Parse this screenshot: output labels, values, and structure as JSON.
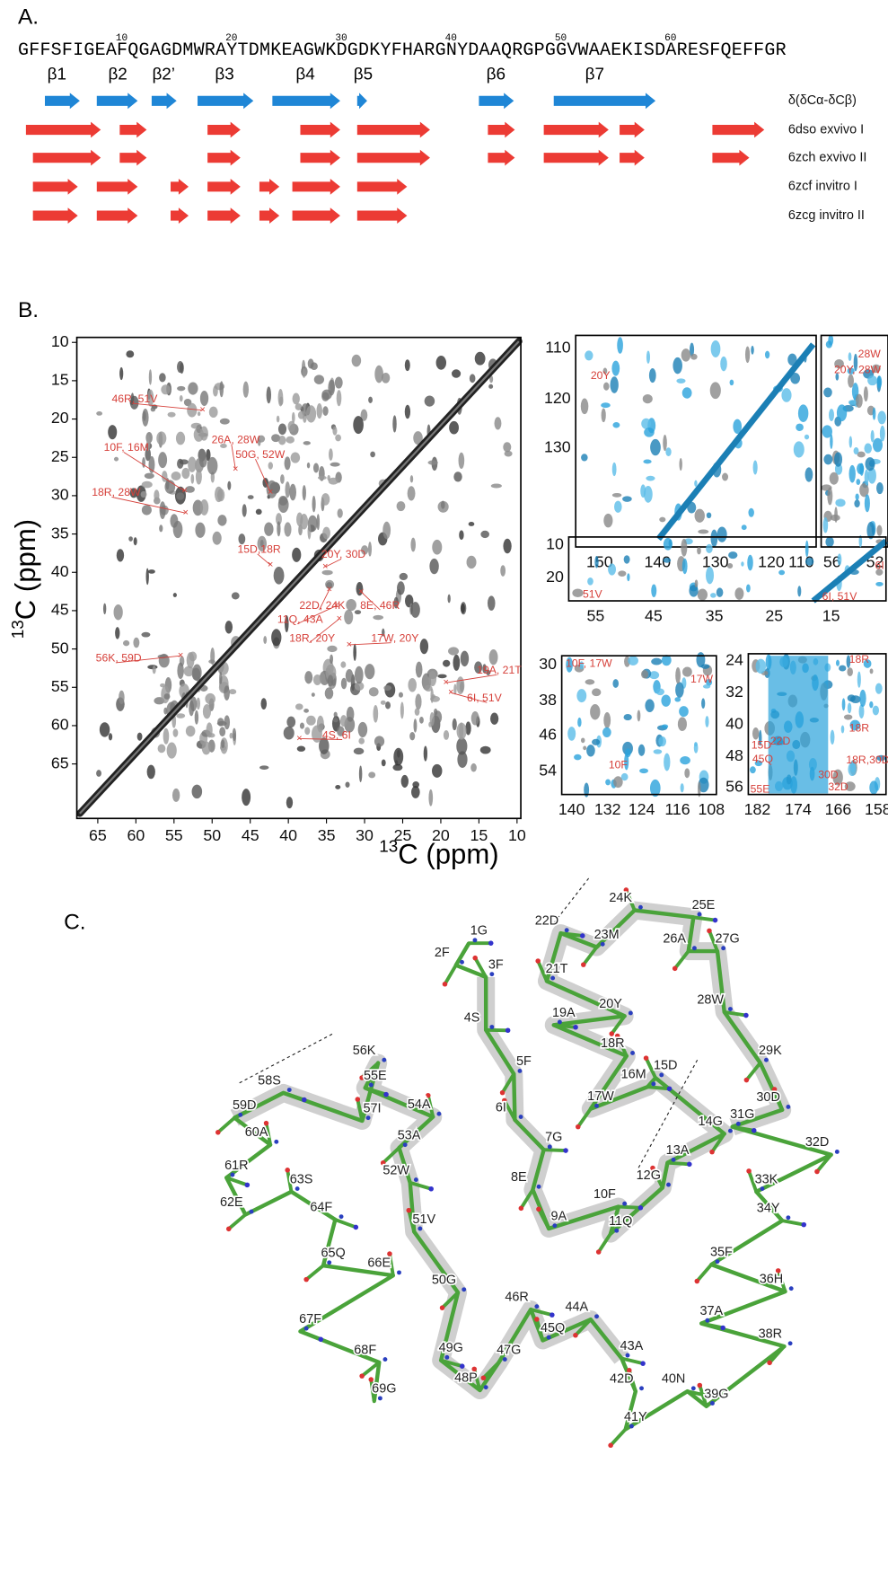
{
  "panel_a": {
    "label": "A.",
    "sequence": "GFFSFIGEAFQGAGDMWRAYTDMKEAGWKDGDKYFHARGNYDAAQRGPGGVWAAEKISDARESFQEFFGR",
    "position_numbers": [
      "10",
      "20",
      "30",
      "40",
      "50",
      "60"
    ],
    "strands": [
      "β1",
      "β2",
      "β2’",
      "β3",
      "β4",
      "β5",
      "β6",
      "β7"
    ],
    "rows": [
      "δ(δCα-δCβ)",
      "6dso exvivo I",
      "6zch exvivo II",
      "6zcf invitro I",
      "6zcg invitro II"
    ]
  },
  "panel_b": {
    "label": "B.",
    "axis_label": {
      "isotope": "13",
      "text": "C (ppm)"
    },
    "main": {
      "x_ticks": [
        "65",
        "60",
        "55",
        "50",
        "45",
        "40",
        "35",
        "30",
        "25",
        "20",
        "15",
        "10"
      ],
      "y_ticks": [
        "10",
        "15",
        "20",
        "25",
        "30",
        "35",
        "40",
        "45",
        "50",
        "55",
        "60",
        "65"
      ],
      "peak_labels": [
        "46R, 51V",
        "10F, 16M",
        "26A, 28W",
        "50G, 52W",
        "18R, 28W",
        "15D,18R",
        "20Y, 30D",
        "22D, 24K",
        "8E, 46R",
        "11Q, 43A",
        "18R, 20Y",
        "17W, 20Y",
        "56K, 59D",
        "19A, 21T",
        "6I, 51V",
        "4S, 6I"
      ]
    },
    "insets": [
      {
        "x_ticks": [
          "150",
          "140",
          "130",
          "120",
          "110"
        ],
        "y_ticks": [
          "110",
          "120",
          "130"
        ],
        "peak_labels": [
          "20Y"
        ]
      },
      {
        "x_ticks": [
          "56",
          "52"
        ],
        "y_ticks": [],
        "peak_labels": [
          "28W",
          "20Y, 28W"
        ]
      },
      {
        "x_ticks": [
          "55",
          "45",
          "35",
          "25",
          "15"
        ],
        "y_ticks": [
          "10",
          "20"
        ],
        "peak_labels": [
          "51V",
          "6I",
          "6I, 51V"
        ]
      },
      {
        "x_ticks": [
          "140",
          "132",
          "124",
          "116",
          "108"
        ],
        "y_ticks": [
          "30",
          "38",
          "46",
          "54"
        ],
        "peak_labels": [
          "10F, 17W",
          "17W",
          "10F"
        ]
      },
      {
        "x_ticks": [
          "182",
          "174",
          "166",
          "158"
        ],
        "y_ticks": [
          "24",
          "32",
          "40",
          "48",
          "56"
        ],
        "peak_labels": [
          "18R",
          "18R",
          "15D",
          "45Q",
          "22D",
          "18R,30D",
          "30D",
          "32D",
          "55E"
        ]
      }
    ]
  },
  "panel_c": {
    "label": "C.",
    "residues": [
      "1G",
      "2F",
      "3F",
      "4S",
      "5F",
      "6I",
      "7G",
      "8E",
      "9A",
      "10F",
      "11Q",
      "12G",
      "13A",
      "14G",
      "15D",
      "16M",
      "17W",
      "18R",
      "19A",
      "20Y",
      "21T",
      "22D",
      "23M",
      "24K",
      "25E",
      "26A",
      "27G",
      "28W",
      "29K",
      "30D",
      "31G",
      "32D",
      "33K",
      "34Y",
      "35F",
      "36H",
      "37A",
      "38R",
      "39G",
      "40N",
      "41Y",
      "42D",
      "43A",
      "44A",
      "45Q",
      "46R",
      "47G",
      "48P",
      "49G",
      "50G",
      "51V",
      "52W",
      "53A",
      "54A",
      "55E",
      "56K",
      "57I",
      "58S",
      "59D",
      "60A",
      "61R",
      "62E",
      "63S",
      "64F",
      "65Q",
      "66E",
      "67F",
      "68F",
      "69G"
    ]
  }
}
